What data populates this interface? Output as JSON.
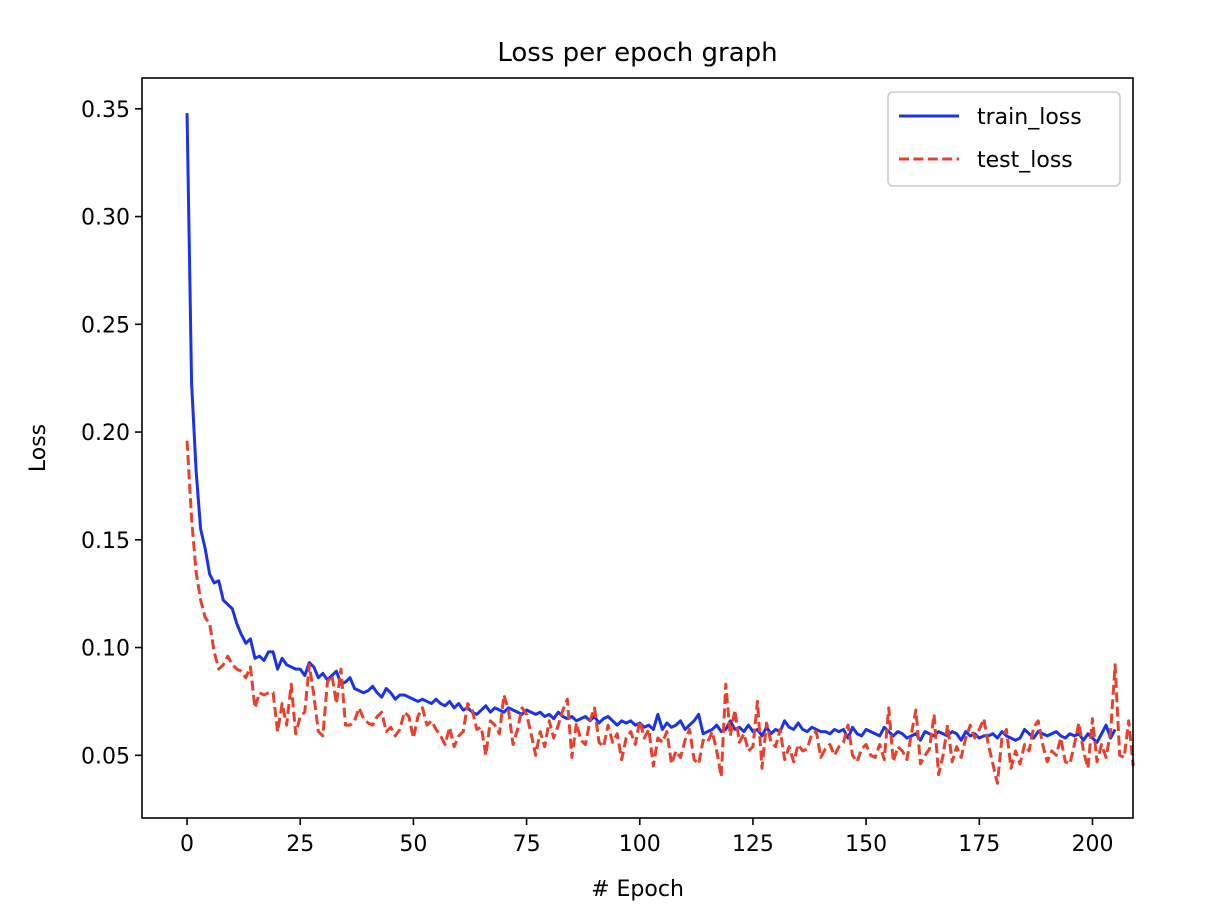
{
  "chart_data": {
    "type": "line",
    "title": "Loss per epoch graph",
    "xlabel": "# Epoch",
    "ylabel": "Loss",
    "xlim": [
      -9.95,
      208.95
    ],
    "ylim": [
      0.0209,
      0.3643
    ],
    "xticks": [
      0,
      25,
      50,
      75,
      100,
      125,
      150,
      175,
      200
    ],
    "yticks": [
      0.05,
      0.1,
      0.15,
      0.2,
      0.25,
      0.3,
      0.35
    ],
    "ytick_labels": [
      "0.05",
      "0.10",
      "0.15",
      "0.20",
      "0.25",
      "0.30",
      "0.35"
    ],
    "grid": false,
    "legend_position": "top-right",
    "series": [
      {
        "name": "train_loss",
        "color": "#1a33e6",
        "style": "solid",
        "values": [
          0.348,
          0.223,
          0.182,
          0.155,
          0.146,
          0.134,
          0.13,
          0.131,
          0.122,
          0.12,
          0.118,
          0.111,
          0.106,
          0.102,
          0.104,
          0.095,
          0.096,
          0.094,
          0.098,
          0.098,
          0.09,
          0.095,
          0.092,
          0.091,
          0.09,
          0.09,
          0.087,
          0.093,
          0.091,
          0.086,
          0.088,
          0.085,
          0.087,
          0.089,
          0.083,
          0.084,
          0.086,
          0.081,
          0.08,
          0.079,
          0.08,
          0.082,
          0.079,
          0.077,
          0.081,
          0.079,
          0.076,
          0.078,
          0.078,
          0.077,
          0.076,
          0.075,
          0.076,
          0.075,
          0.074,
          0.076,
          0.074,
          0.073,
          0.075,
          0.072,
          0.074,
          0.071,
          0.072,
          0.07,
          0.069,
          0.071,
          0.073,
          0.07,
          0.072,
          0.071,
          0.07,
          0.072,
          0.071,
          0.07,
          0.069,
          0.071,
          0.07,
          0.069,
          0.07,
          0.068,
          0.069,
          0.067,
          0.07,
          0.068,
          0.067,
          0.068,
          0.066,
          0.067,
          0.068,
          0.066,
          0.068,
          0.065,
          0.067,
          0.068,
          0.066,
          0.064,
          0.066,
          0.065,
          0.066,
          0.064,
          0.065,
          0.063,
          0.064,
          0.062,
          0.069,
          0.062,
          0.065,
          0.063,
          0.064,
          0.066,
          0.062,
          0.064,
          0.066,
          0.069,
          0.06,
          0.061,
          0.062,
          0.064,
          0.061,
          0.062,
          0.066,
          0.062,
          0.063,
          0.061,
          0.064,
          0.061,
          0.062,
          0.059,
          0.063,
          0.06,
          0.062,
          0.061,
          0.066,
          0.063,
          0.062,
          0.065,
          0.062,
          0.061,
          0.063,
          0.062,
          0.061,
          0.061,
          0.06,
          0.062,
          0.061,
          0.062,
          0.058,
          0.063,
          0.06,
          0.059,
          0.062,
          0.061,
          0.06,
          0.059,
          0.063,
          0.061,
          0.059,
          0.061,
          0.06,
          0.058,
          0.059,
          0.06,
          0.057,
          0.061,
          0.06,
          0.059,
          0.061,
          0.06,
          0.059,
          0.061,
          0.06,
          0.057,
          0.061,
          0.059,
          0.06,
          0.058,
          0.059,
          0.059,
          0.06,
          0.058,
          0.061,
          0.059,
          0.058,
          0.057,
          0.058,
          0.062,
          0.06,
          0.058,
          0.061,
          0.06,
          0.059,
          0.06,
          0.061,
          0.059,
          0.058,
          0.06,
          0.059,
          0.06,
          0.057,
          0.06,
          0.058,
          0.056,
          0.06,
          0.064,
          0.058,
          0.062
        ]
      },
      {
        "name": "test_loss",
        "color": "#e8402a",
        "style": "dashed",
        "values": [
          0.196,
          0.16,
          0.135,
          0.122,
          0.114,
          0.111,
          0.098,
          0.09,
          0.092,
          0.096,
          0.092,
          0.09,
          0.089,
          0.086,
          0.091,
          0.072,
          0.079,
          0.078,
          0.079,
          0.079,
          0.061,
          0.074,
          0.064,
          0.083,
          0.06,
          0.068,
          0.07,
          0.092,
          0.078,
          0.061,
          0.059,
          0.084,
          0.087,
          0.074,
          0.09,
          0.064,
          0.064,
          0.066,
          0.072,
          0.067,
          0.065,
          0.064,
          0.068,
          0.07,
          0.061,
          0.063,
          0.059,
          0.062,
          0.07,
          0.068,
          0.058,
          0.068,
          0.072,
          0.064,
          0.066,
          0.062,
          0.059,
          0.055,
          0.063,
          0.054,
          0.059,
          0.061,
          0.074,
          0.071,
          0.062,
          0.063,
          0.05,
          0.066,
          0.064,
          0.06,
          0.078,
          0.071,
          0.055,
          0.062,
          0.072,
          0.069,
          0.06,
          0.05,
          0.061,
          0.054,
          0.066,
          0.058,
          0.064,
          0.071,
          0.076,
          0.049,
          0.065,
          0.057,
          0.055,
          0.066,
          0.072,
          0.056,
          0.054,
          0.064,
          0.056,
          0.06,
          0.048,
          0.058,
          0.061,
          0.055,
          0.066,
          0.058,
          0.062,
          0.045,
          0.058,
          0.056,
          0.061,
          0.046,
          0.052,
          0.049,
          0.057,
          0.062,
          0.048,
          0.046,
          0.057,
          0.056,
          0.061,
          0.052,
          0.04,
          0.083,
          0.059,
          0.071,
          0.056,
          0.06,
          0.052,
          0.054,
          0.075,
          0.044,
          0.065,
          0.056,
          0.054,
          0.062,
          0.048,
          0.054,
          0.047,
          0.055,
          0.052,
          0.053,
          0.06,
          0.061,
          0.049,
          0.053,
          0.055,
          0.05,
          0.054,
          0.056,
          0.064,
          0.05,
          0.047,
          0.053,
          0.055,
          0.05,
          0.049,
          0.055,
          0.048,
          0.072,
          0.047,
          0.054,
          0.052,
          0.048,
          0.06,
          0.071,
          0.046,
          0.05,
          0.053,
          0.069,
          0.041,
          0.05,
          0.064,
          0.047,
          0.054,
          0.049,
          0.058,
          0.064,
          0.058,
          0.062,
          0.067,
          0.055,
          0.046,
          0.037,
          0.058,
          0.062,
          0.044,
          0.052,
          0.046,
          0.055,
          0.052,
          0.063,
          0.066,
          0.055,
          0.047,
          0.052,
          0.05,
          0.058,
          0.047,
          0.046,
          0.055,
          0.065,
          0.052,
          0.044,
          0.067,
          0.047,
          0.055,
          0.049,
          0.061,
          0.092,
          0.05,
          0.049,
          0.066,
          0.045
        ]
      }
    ]
  }
}
